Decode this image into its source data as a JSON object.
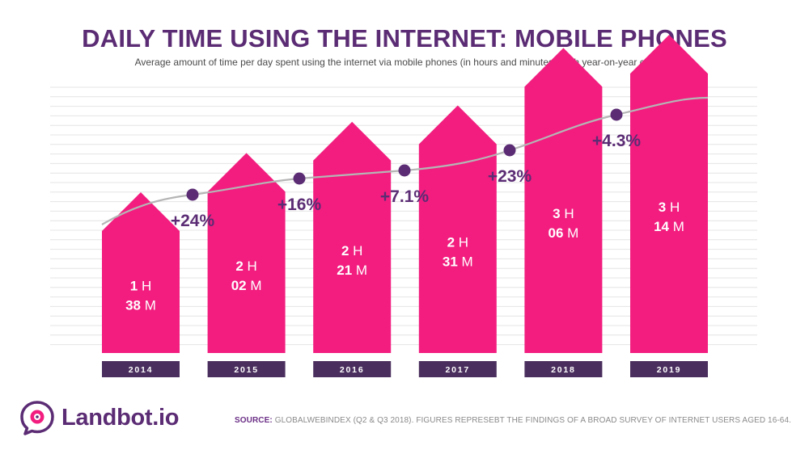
{
  "header": {
    "title": "DAILY TIME USING THE INTERNET: MOBILE PHONES",
    "subtitle": "Average amount of time per day spent using the internet via mobile phones (in hours and minutes), with year-on-year change."
  },
  "chart_data": {
    "type": "bar",
    "title": "DAILY TIME USING THE INTERNET: MOBILE PHONES",
    "categories": [
      "2014",
      "2015",
      "2016",
      "2017",
      "2018",
      "2019"
    ],
    "values_minutes": [
      98,
      122,
      141,
      151,
      186,
      194
    ],
    "bar_labels": [
      {
        "h": "1",
        "m": "38"
      },
      {
        "h": "2",
        "m": "02"
      },
      {
        "h": "2",
        "m": "21"
      },
      {
        "h": "2",
        "m": "31"
      },
      {
        "h": "3",
        "m": "06"
      },
      {
        "h": "3",
        "m": "14"
      }
    ],
    "hour_unit": "H",
    "minute_unit": "M",
    "yoy_change": [
      "+24%",
      "+16%",
      "+7.1%",
      "+23%",
      "+4.3%"
    ],
    "xlabel": "",
    "ylabel": "",
    "grid": true,
    "colors": {
      "bar": "#f21d7f",
      "bar_top": "#ff3a8c",
      "year_band": "#4a2f5e",
      "trend_line": "#b5b5b5",
      "trend_dot": "#5b2c74",
      "label": "#5b2c74",
      "grid": "#e4e4e4"
    }
  },
  "logo": {
    "text": "Landbot.io",
    "icon": "chat-bubble-eye-icon"
  },
  "footer": {
    "source_label": "SOURCE:",
    "source_text": "GLOBALWEBINDEX (Q2 & Q3 2018). FIGURES REPRESEBT THE FINDINGS OF A BROAD SURVEY OF INTERNET USERS AGED 16-64."
  }
}
